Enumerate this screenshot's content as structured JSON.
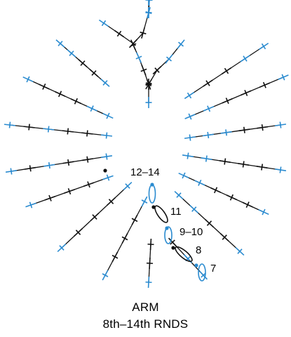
{
  "colors": {
    "blue": "#2a8bd0",
    "black": "#111111",
    "background": "#ffffff"
  },
  "symbols": {
    "stitch": "cross-mark",
    "loop": "oval-loop",
    "point": "dot"
  },
  "round_labels": {
    "r12_14": "12–14",
    "r11": "11",
    "r9_10": "9–10",
    "r8": "8",
    "r7": "7"
  },
  "caption": {
    "line1": "ARM",
    "line2": "8th–14th RNDS"
  }
}
